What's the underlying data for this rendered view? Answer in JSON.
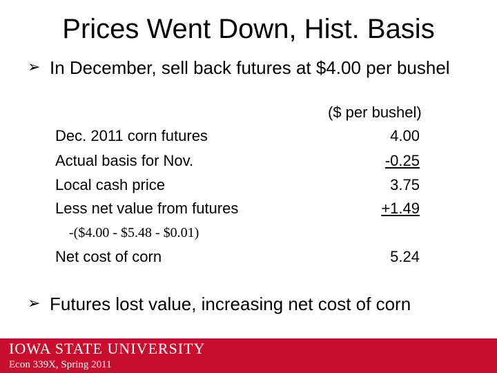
{
  "title": "Prices Went Down, Hist. Basis",
  "bullets": [
    "In December, sell back futures at $4.00 per bushel",
    "Futures lost value, increasing net cost of corn"
  ],
  "table": {
    "units": "($ per bushel)",
    "rows": [
      {
        "label": "Dec. 2011 corn futures",
        "value": "4.00"
      },
      {
        "label": "Actual basis for Nov.",
        "value": "-0.25"
      },
      {
        "label": "Local cash price",
        "value": "3.75"
      },
      {
        "label": "Less net value from futures",
        "value": "+1.49"
      }
    ],
    "formula": "-($4.00 - $5.48 - $0.01)",
    "net": {
      "label": "Net cost of corn",
      "value": "5.24"
    }
  },
  "footer": {
    "university": "IOWA STATE UNIVERSITY",
    "course": "Econ 339X, Spring 2011",
    "color": "#c8102e"
  },
  "icons": {
    "bullet": "arrow-bullet-icon"
  }
}
